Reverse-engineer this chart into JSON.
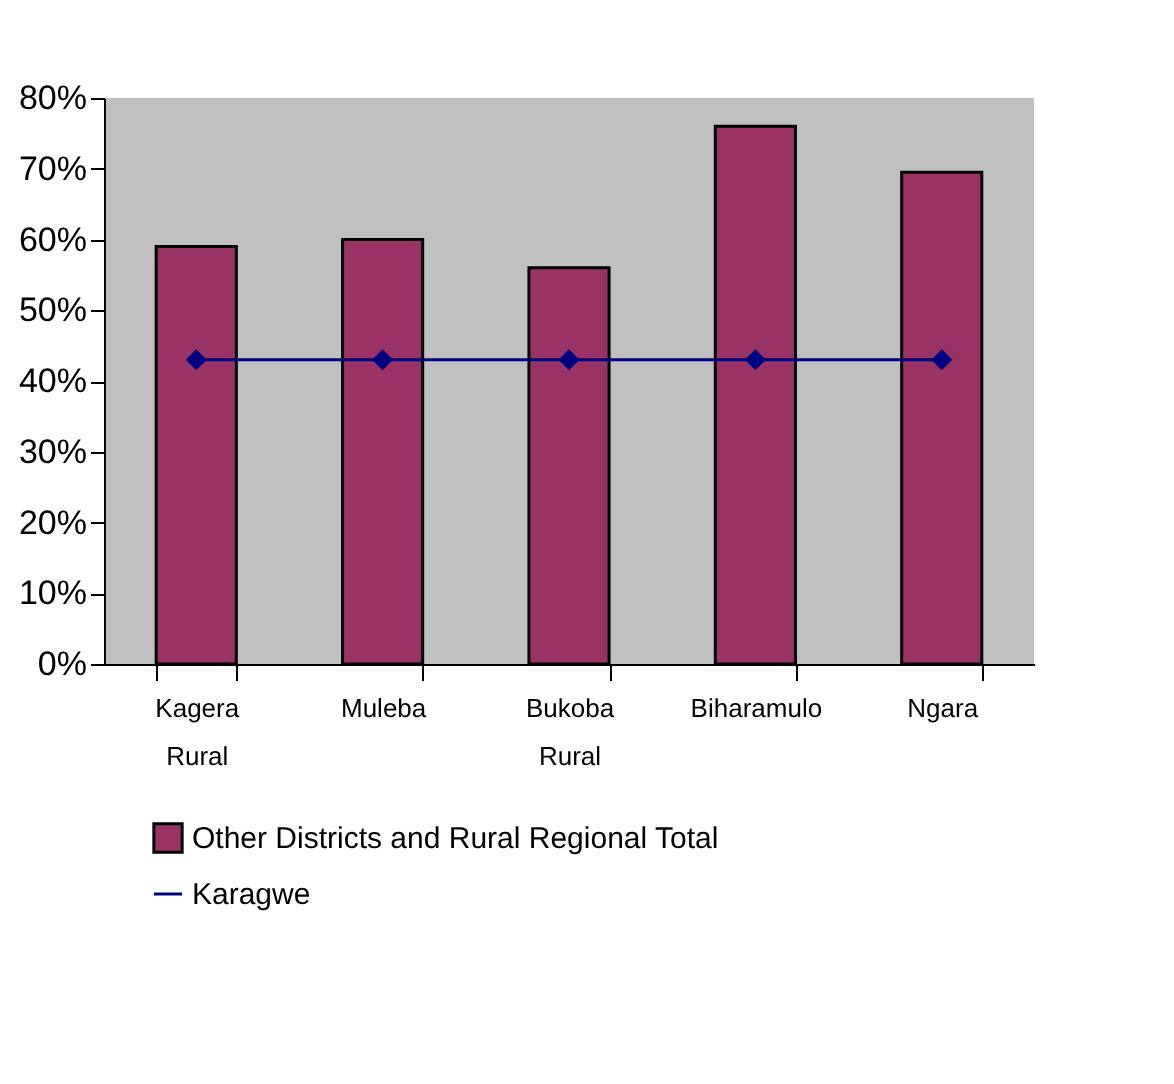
{
  "chart_data": {
    "type": "bar",
    "categories": [
      "Kagera Rural",
      "Muleba",
      "Bukoba Rural",
      "Biharamulo",
      "Ngara"
    ],
    "series": [
      {
        "name": "Other Districts and Rural Regional Total",
        "color": "#993366",
        "values": [
          59,
          60,
          56,
          76,
          69.5
        ]
      },
      {
        "name": "Karagwe",
        "type": "line",
        "color": "#000080",
        "values": [
          43,
          43,
          43,
          43,
          43
        ]
      }
    ],
    "ylim": [
      0,
      80
    ],
    "yticks": [
      {
        "value": 0,
        "label": "0%"
      },
      {
        "value": 10,
        "label": "10%"
      },
      {
        "value": 20,
        "label": "20%"
      },
      {
        "value": 30,
        "label": "30%"
      },
      {
        "value": 40,
        "label": "40%"
      },
      {
        "value": 50,
        "label": "50%"
      },
      {
        "value": 60,
        "label": "60%"
      },
      {
        "value": 70,
        "label": "70%"
      },
      {
        "value": 80,
        "label": "80%"
      }
    ],
    "legend": "bottom",
    "marker": "diamond",
    "line_style": "solid"
  }
}
